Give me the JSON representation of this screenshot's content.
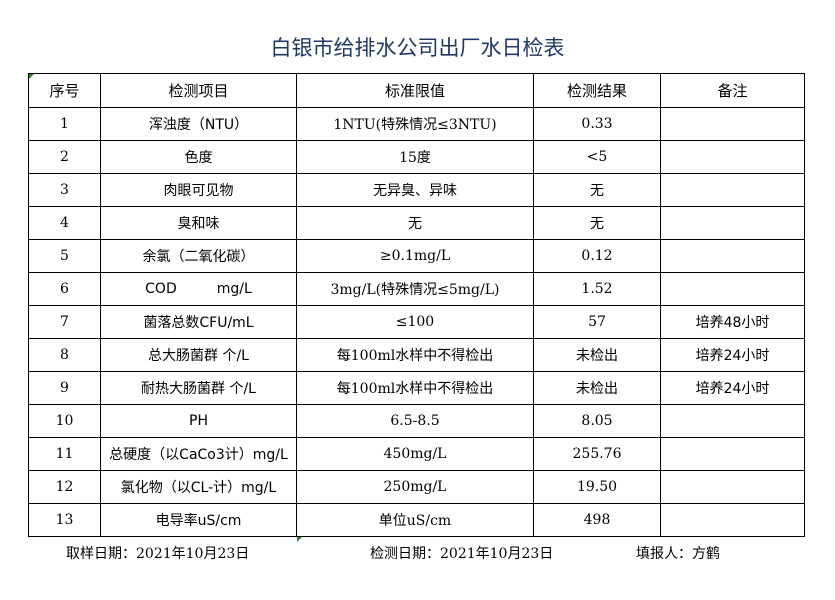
{
  "title": "白银市给排水公司出厂水日检表",
  "table": {
    "headers": [
      "序号",
      "检测项目",
      "标准限值",
      "检测结果",
      "备注"
    ],
    "rows": [
      [
        "1",
        "浑浊度（NTU）",
        "1NTU(特殊情况≤3NTU)",
        "0.33",
        ""
      ],
      [
        "2",
        "色度",
        "15度",
        "<5",
        ""
      ],
      [
        "3",
        "肉眼可见物",
        "无异臭、异味",
        "无",
        ""
      ],
      [
        "4",
        "臭和味",
        "无",
        "无",
        ""
      ],
      [
        "5",
        "余氯（二氧化碳）",
        "≥0.1mg/L",
        "0.12",
        ""
      ],
      [
        "6",
        "COD         mg/L",
        "3mg/L(特殊情况≤5mg/L)",
        "1.52",
        ""
      ],
      [
        "7",
        "菌落总数CFU/mL",
        "≤100",
        "57",
        "培养48小时"
      ],
      [
        "8",
        "总大肠菌群 个/L",
        "每100ml水样中不得检出",
        "未检出",
        "培养24小时"
      ],
      [
        "9",
        "耐热大肠菌群 个/L",
        "每100ml水样中不得检出",
        "未检出",
        "培养24小时"
      ],
      [
        "10",
        "PH",
        "6.5-8.5",
        "8.05",
        ""
      ],
      [
        "11",
        "总硬度（以CaCo3计）mg/L",
        "450mg/L",
        "255.76",
        ""
      ],
      [
        "12",
        "氯化物（以CL-计）mg/L",
        "250mg/L",
        "19.50",
        ""
      ],
      [
        "13",
        "电导率uS/cm",
        "单位uS/cm",
        "498",
        ""
      ]
    ]
  },
  "footer": {
    "sampling_date": "取样日期：2021年10月23日",
    "test_date": "检测日期：2021年10月23日",
    "reporter": "填报人：方鹤"
  },
  "colors": {
    "title": "#1f3864",
    "cell_marker": "#1a8f1a"
  }
}
